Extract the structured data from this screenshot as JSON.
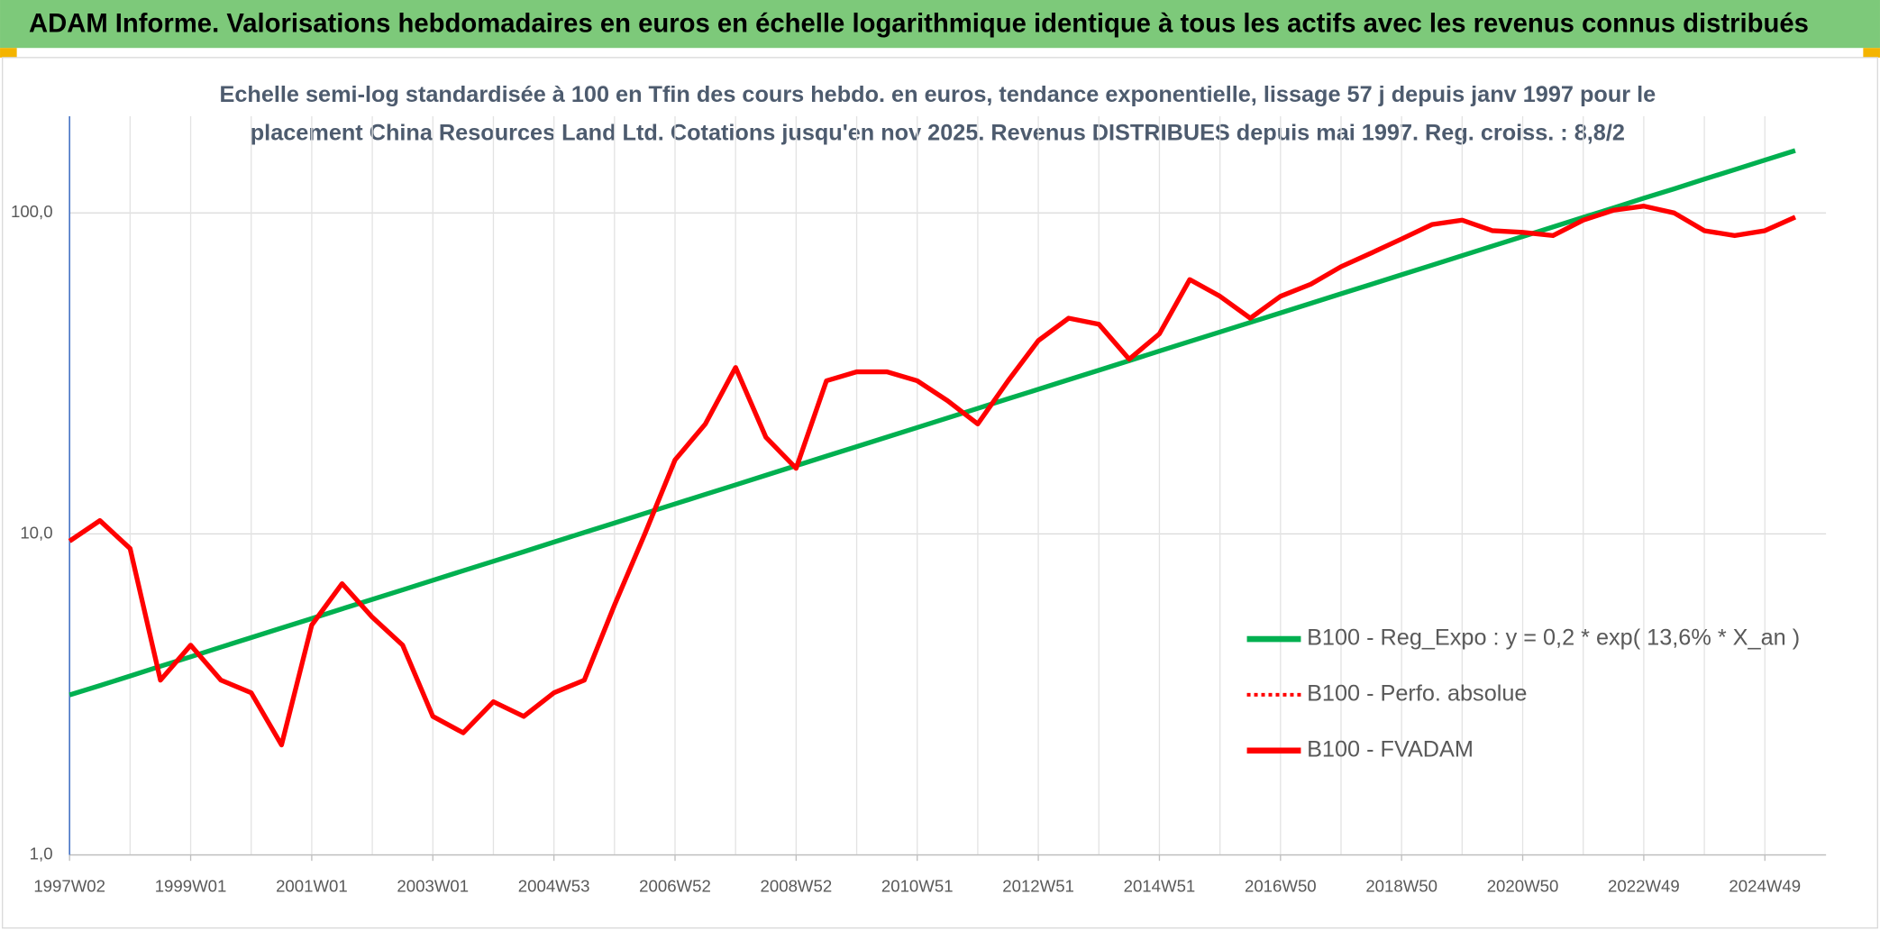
{
  "chart_data": {
    "type": "line",
    "title": "ADAM Informe. Valorisations hebdomadaires en euros en échelle logarithmique identique à tous les actifs avec les revenus connus distribués",
    "subtitle": [
      "Echelle semi-log standardisée à 100 en Tfin des cours hebdo. en euros, tendance exponentielle, lissage 57 j depuis janv 1997 pour le",
      "placement China Resources Land Ltd. Cotations jusqu'en nov 2025. Revenus DISTRIBUES depuis mai 1997. Reg. croiss. : 8,8/2"
    ],
    "categories": [
      "1997W02",
      null,
      null,
      null,
      "1999W01",
      null,
      null,
      null,
      "2001W01",
      null,
      null,
      null,
      "2003W01",
      null,
      null,
      null,
      "2004W53",
      null,
      null,
      null,
      "2006W52",
      null,
      null,
      null,
      "2008W52",
      null,
      null,
      null,
      "2010W51",
      null,
      null,
      null,
      "2012W51",
      null,
      null,
      null,
      "2014W51",
      null,
      null,
      null,
      "2016W50",
      null,
      null,
      null,
      "2018W50",
      null,
      null,
      null,
      "2020W50",
      null,
      null,
      null,
      "2022W49",
      null,
      null,
      null,
      "2024W49",
      null
    ],
    "series": [
      {
        "name": "B100 - Reg_Expo : y = 0,2 * exp( 13,6% *  X_an )",
        "color": "#00b050",
        "style": "solid",
        "values": [
          3.15,
          3.37,
          3.61,
          3.87,
          4.14,
          4.44,
          4.75,
          5.09,
          5.45,
          5.84,
          6.25,
          6.69,
          7.17,
          7.68,
          8.22,
          8.8,
          9.43,
          10.1,
          10.81,
          11.58,
          12.4,
          13.28,
          14.22,
          15.23,
          16.31,
          17.47,
          18.71,
          20.03,
          21.45,
          22.98,
          24.6,
          26.35,
          28.22,
          30.22,
          32.36,
          34.66,
          37.11,
          39.75,
          42.56,
          45.58,
          48.81,
          52.28,
          55.98,
          59.95,
          64.2,
          68.75,
          73.63,
          78.85,
          84.44,
          90.43,
          96.84,
          103.7,
          111.1,
          118.9,
          127.4,
          136.4,
          146.1,
          156.4
        ]
      },
      {
        "name": "B100 - Perfo. absolue",
        "color": "#ff0000",
        "style": "dotted",
        "values": [
          9.5,
          11,
          9,
          3.5,
          4.5,
          3.5,
          3.2,
          2.2,
          5.2,
          7,
          5.5,
          4.5,
          2.7,
          2.4,
          3,
          2.7,
          3.2,
          3.5,
          6,
          10,
          17,
          22,
          33,
          20,
          16,
          30,
          32,
          32,
          30,
          26,
          22,
          30,
          40,
          47,
          45,
          35,
          42,
          62,
          55,
          47,
          55,
          60,
          68,
          75,
          83,
          92,
          95,
          88,
          87,
          85,
          95,
          102,
          105,
          100,
          88,
          85,
          88,
          97
        ]
      },
      {
        "name": "B100 - FVADAM",
        "color": "#ff0000",
        "style": "solid",
        "values": [
          9.5,
          11,
          9,
          3.5,
          4.5,
          3.5,
          3.2,
          2.2,
          5.2,
          7,
          5.5,
          4.5,
          2.7,
          2.4,
          3,
          2.7,
          3.2,
          3.5,
          6,
          10,
          17,
          22,
          33,
          20,
          16,
          30,
          32,
          32,
          30,
          26,
          22,
          30,
          40,
          47,
          45,
          35,
          42,
          62,
          55,
          47,
          55,
          60,
          68,
          75,
          83,
          92,
          95,
          88,
          87,
          85,
          95,
          102,
          105,
          100,
          88,
          85,
          88,
          97
        ]
      }
    ],
    "log_scale": true,
    "ylim": [
      1,
      200
    ],
    "yticks": [
      {
        "value": 1,
        "label": "1,0"
      },
      {
        "value": 10,
        "label": "10,0"
      },
      {
        "value": 100,
        "label": "100,0"
      }
    ],
    "grid": true,
    "legend": "right"
  }
}
